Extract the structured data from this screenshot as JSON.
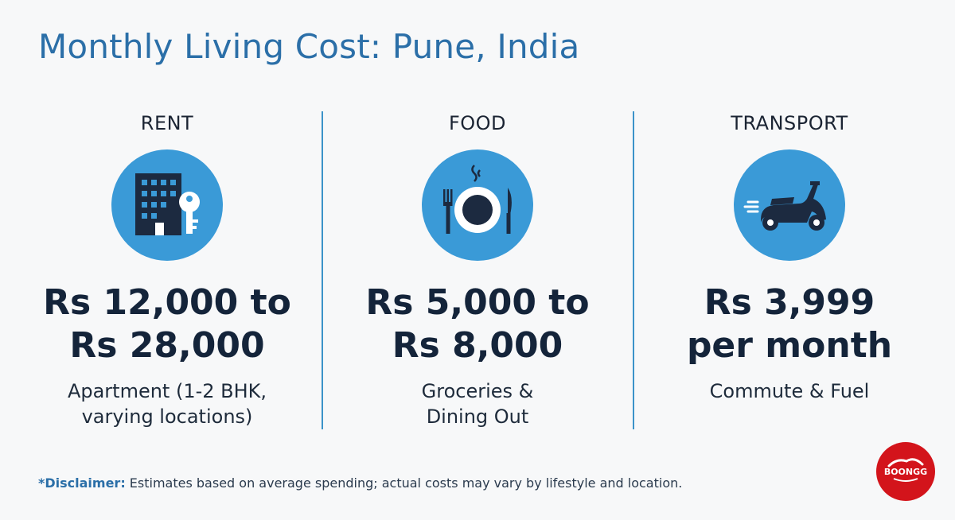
{
  "title": "Monthly Living Cost: Pune, India",
  "columns": [
    {
      "category": "RENT",
      "icon": "building-key-icon",
      "price_line1": "Rs 12,000 to",
      "price_line2": "Rs 28,000",
      "desc_line1": "Apartment (1-2 BHK,",
      "desc_line2": "varying locations)"
    },
    {
      "category": "FOOD",
      "icon": "plate-cutlery-icon",
      "price_line1": "Rs 5,000 to",
      "price_line2": "Rs 8,000",
      "desc_line1": "Groceries &",
      "desc_line2": "Dining Out"
    },
    {
      "category": "TRANSPORT",
      "icon": "scooter-icon",
      "price_line1": "Rs 3,999",
      "price_line2": "per month",
      "desc_line1": "Commute & Fuel",
      "desc_line2": ""
    }
  ],
  "disclaimer": {
    "label": "*Disclaimer:",
    "text": " Estimates based on average spending; actual costs may vary by lifestyle and location."
  },
  "logo": {
    "text": "BOONGG",
    "color": "#d3141b"
  },
  "colors": {
    "accent": "#2b6fa8",
    "icon_circle": "#3a9ad7",
    "divider": "#3b93c9",
    "icon_dark": "#1c2a40"
  }
}
